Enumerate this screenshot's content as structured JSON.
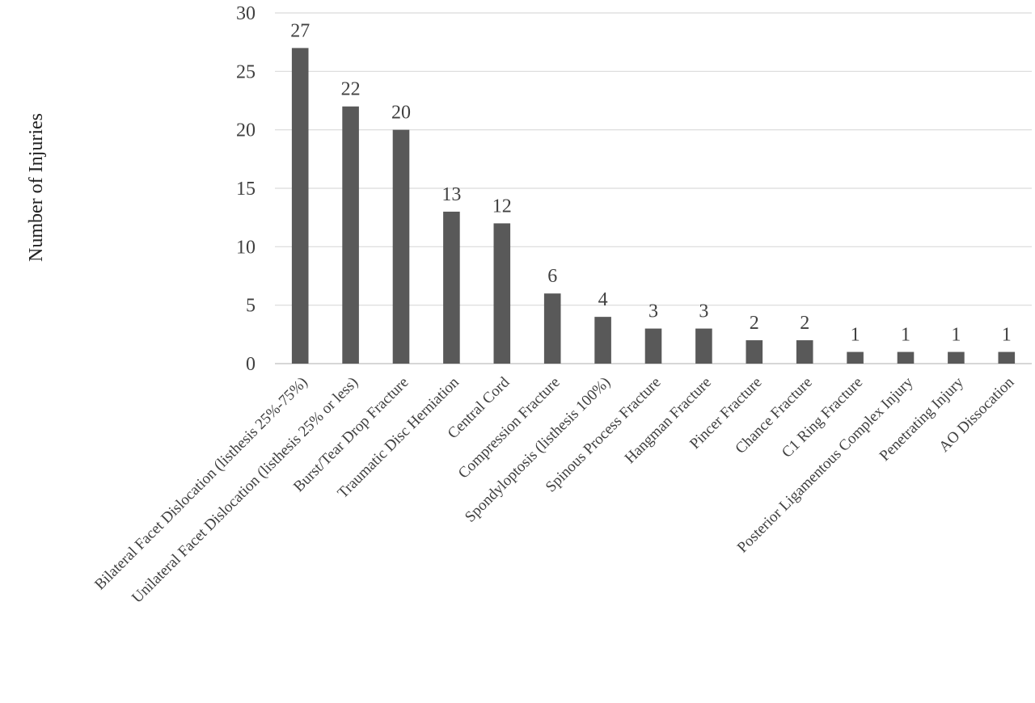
{
  "chart_data": {
    "type": "bar",
    "title": "",
    "xlabel": "",
    "ylabel": "Number of Injuries",
    "ylim": [
      0,
      30
    ],
    "yticks": [
      0,
      5,
      10,
      15,
      20,
      25,
      30
    ],
    "grid": true,
    "legend": "none",
    "bar_color": "#595959",
    "categories": [
      "Bilateral Facet Dislocation (listhesis 25%-75%)",
      "Unilateral Facet Dislocation (listhesis 25% or less)",
      "Burst/Tear Drop Fracture",
      "Traumatic Disc Herniation",
      "Central Cord",
      "Compression Fracture",
      "Spondyloptosis (listhesis 100%)",
      "Spinous Process Fracture",
      "Hangman Fracture",
      "Pincer Fracture",
      "Chance Fracture",
      "C1 Ring Fracture",
      "Posterior Ligamentous Complex Injury",
      "Penetrating Injury",
      "AO Dissocation"
    ],
    "values": [
      27,
      22,
      20,
      13,
      12,
      6,
      4,
      3,
      3,
      2,
      2,
      1,
      1,
      1,
      1
    ]
  }
}
